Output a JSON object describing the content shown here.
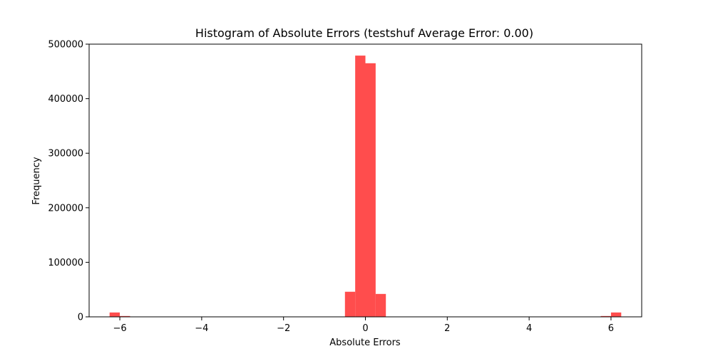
{
  "chart_data": {
    "type": "bar",
    "title": "Histogram of Absolute Errors (testshuf Average Error: 0.00)",
    "xlabel": "Absolute Errors",
    "ylabel": "Frequency",
    "xlim": [
      -6.75,
      6.75
    ],
    "ylim": [
      0,
      500000
    ],
    "xticks": [
      -6,
      -4,
      -2,
      0,
      2,
      4,
      6
    ],
    "xtick_labels": [
      "−6",
      "−4",
      "−2",
      "0",
      "2",
      "4",
      "6"
    ],
    "yticks": [
      0,
      100000,
      200000,
      300000,
      400000,
      500000
    ],
    "ytick_labels": [
      "0",
      "100000",
      "200000",
      "300000",
      "400000",
      "500000"
    ],
    "grid": false,
    "bar_color": "#ff4d4d",
    "bins": [
      {
        "x0": -6.25,
        "x1": -6.0,
        "value": 8000
      },
      {
        "x0": -6.0,
        "x1": -5.75,
        "value": 1500
      },
      {
        "x0": -0.5,
        "x1": -0.25,
        "value": 46000
      },
      {
        "x0": -0.25,
        "x1": 0.0,
        "value": 479000
      },
      {
        "x0": 0.0,
        "x1": 0.25,
        "value": 465000
      },
      {
        "x0": 0.25,
        "x1": 0.5,
        "value": 42000
      },
      {
        "x0": 5.75,
        "x1": 6.0,
        "value": 1500
      },
      {
        "x0": 6.0,
        "x1": 6.25,
        "value": 8000
      }
    ]
  }
}
